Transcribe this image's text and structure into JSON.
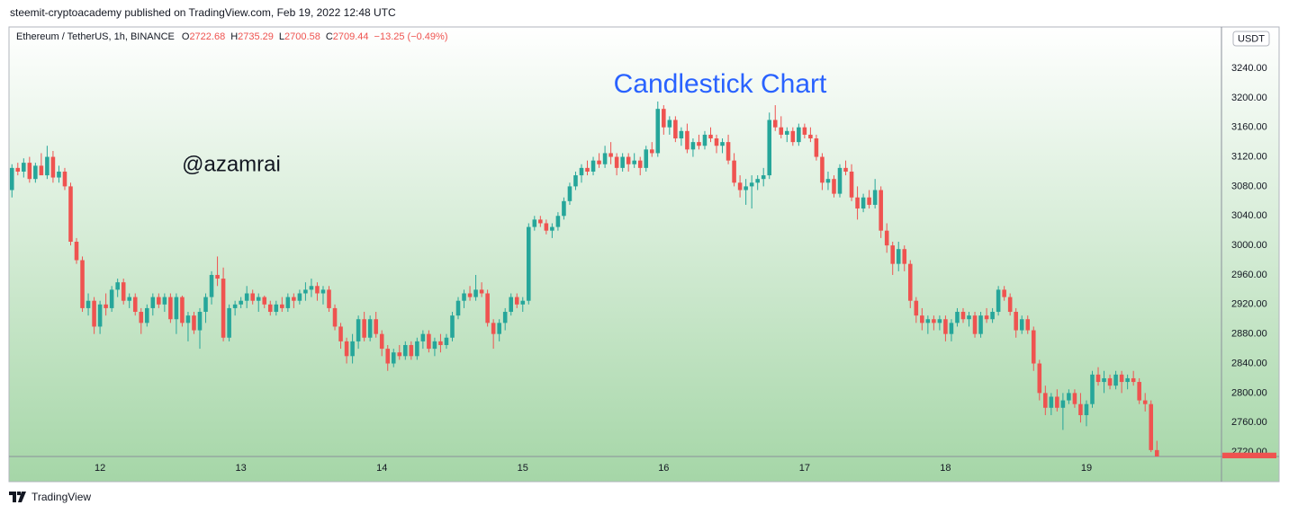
{
  "header": {
    "published": "steemit-cryptoacademy published on TradingView.com, Feb 19, 2022 12:48 UTC"
  },
  "footer": {
    "brand": "TradingView"
  },
  "chart_data": {
    "type": "candlestick",
    "symbol": "Ethereum / TetherUS, 1h, BINANCE",
    "ohlc_fields": [
      "O",
      "H",
      "L",
      "C"
    ],
    "change": "−13.25 (−0.49%)",
    "currency": "USDT",
    "title": "Candlestick Chart",
    "annotation": "@azamrai",
    "up_color": "#26a69a",
    "down_color": "#ef5350",
    "grid": false,
    "ylim": [
      2714,
      3296
    ],
    "yticks": [
      {
        "value": 2720,
        "label": "2720.00"
      },
      {
        "value": 2760,
        "label": "2760.00"
      },
      {
        "value": 2800,
        "label": "2800.00"
      },
      {
        "value": 2840,
        "label": "2840.00"
      },
      {
        "value": 2880,
        "label": "2880.00"
      },
      {
        "value": 2920,
        "label": "2920.00"
      },
      {
        "value": 2960,
        "label": "2960.00"
      },
      {
        "value": 3000,
        "label": "3000.00"
      },
      {
        "value": 3040,
        "label": "3040.00"
      },
      {
        "value": 3080,
        "label": "3080.00"
      },
      {
        "value": 3120,
        "label": "3120.00"
      },
      {
        "value": 3160,
        "label": "3160.00"
      },
      {
        "value": 3200,
        "label": "3200.00"
      },
      {
        "value": 3240,
        "label": "3240.00"
      }
    ],
    "xlim": [
      -0.5,
      206
    ],
    "xticks": [
      {
        "value": 15,
        "label": "12"
      },
      {
        "value": 39,
        "label": "13"
      },
      {
        "value": 63,
        "label": "14"
      },
      {
        "value": 87,
        "label": "15"
      },
      {
        "value": 111,
        "label": "16"
      },
      {
        "value": 135,
        "label": "17"
      },
      {
        "value": 159,
        "label": "18"
      },
      {
        "value": 183,
        "label": "19"
      }
    ],
    "ohlc": [
      [
        3075,
        3110,
        3065,
        3105
      ],
      [
        3105,
        3112,
        3095,
        3100
      ],
      [
        3100,
        3118,
        3092,
        3112
      ],
      [
        3112,
        3120,
        3085,
        3090
      ],
      [
        3090,
        3112,
        3085,
        3108
      ],
      [
        3108,
        3125,
        3100,
        3095
      ],
      [
        3095,
        3135,
        3090,
        3120
      ],
      [
        3120,
        3128,
        3085,
        3092
      ],
      [
        3092,
        3108,
        3085,
        3100
      ],
      [
        3100,
        3105,
        3075,
        3080
      ],
      [
        3080,
        3085,
        3000,
        3005
      ],
      [
        3005,
        3010,
        2975,
        2980
      ],
      [
        2980,
        2985,
        2910,
        2915
      ],
      [
        2915,
        2935,
        2905,
        2925
      ],
      [
        2925,
        2930,
        2880,
        2890
      ],
      [
        2890,
        2925,
        2880,
        2920
      ],
      [
        2920,
        2935,
        2905,
        2915
      ],
      [
        2915,
        2945,
        2910,
        2940
      ],
      [
        2940,
        2955,
        2930,
        2950
      ],
      [
        2950,
        2955,
        2920,
        2925
      ],
      [
        2925,
        2935,
        2915,
        2930
      ],
      [
        2930,
        2935,
        2905,
        2910
      ],
      [
        2910,
        2915,
        2880,
        2895
      ],
      [
        2895,
        2920,
        2890,
        2915
      ],
      [
        2915,
        2935,
        2905,
        2930
      ],
      [
        2930,
        2935,
        2915,
        2920
      ],
      [
        2920,
        2935,
        2910,
        2930
      ],
      [
        2930,
        2935,
        2895,
        2900
      ],
      [
        2900,
        2935,
        2880,
        2930
      ],
      [
        2930,
        2932,
        2890,
        2895
      ],
      [
        2895,
        2910,
        2870,
        2905
      ],
      [
        2905,
        2910,
        2880,
        2885
      ],
      [
        2885,
        2915,
        2860,
        2910
      ],
      [
        2910,
        2935,
        2895,
        2930
      ],
      [
        2930,
        2965,
        2920,
        2960
      ],
      [
        2960,
        2985,
        2945,
        2955
      ],
      [
        2955,
        2970,
        2870,
        2875
      ],
      [
        2875,
        2920,
        2870,
        2915
      ],
      [
        2915,
        2925,
        2905,
        2920
      ],
      [
        2920,
        2930,
        2915,
        2925
      ],
      [
        2925,
        2945,
        2915,
        2935
      ],
      [
        2935,
        2940,
        2920,
        2925
      ],
      [
        2925,
        2935,
        2910,
        2930
      ],
      [
        2930,
        2932,
        2915,
        2920
      ],
      [
        2920,
        2925,
        2905,
        2910
      ],
      [
        2910,
        2925,
        2905,
        2920
      ],
      [
        2920,
        2930,
        2910,
        2915
      ],
      [
        2915,
        2935,
        2910,
        2930
      ],
      [
        2930,
        2935,
        2915,
        2925
      ],
      [
        2925,
        2940,
        2920,
        2935
      ],
      [
        2935,
        2950,
        2925,
        2940
      ],
      [
        2940,
        2955,
        2930,
        2945
      ],
      [
        2945,
        2950,
        2925,
        2935
      ],
      [
        2935,
        2945,
        2920,
        2940
      ],
      [
        2940,
        2945,
        2910,
        2915
      ],
      [
        2915,
        2920,
        2885,
        2890
      ],
      [
        2890,
        2895,
        2860,
        2870
      ],
      [
        2870,
        2875,
        2840,
        2850
      ],
      [
        2850,
        2880,
        2840,
        2870
      ],
      [
        2870,
        2905,
        2860,
        2900
      ],
      [
        2900,
        2910,
        2870,
        2875
      ],
      [
        2875,
        2905,
        2870,
        2900
      ],
      [
        2900,
        2910,
        2875,
        2880
      ],
      [
        2880,
        2885,
        2850,
        2860
      ],
      [
        2860,
        2865,
        2830,
        2840
      ],
      [
        2840,
        2860,
        2835,
        2855
      ],
      [
        2855,
        2865,
        2845,
        2850
      ],
      [
        2850,
        2870,
        2845,
        2865
      ],
      [
        2865,
        2870,
        2845,
        2850
      ],
      [
        2850,
        2875,
        2845,
        2870
      ],
      [
        2870,
        2885,
        2860,
        2880
      ],
      [
        2880,
        2885,
        2855,
        2860
      ],
      [
        2860,
        2875,
        2850,
        2870
      ],
      [
        2870,
        2880,
        2855,
        2865
      ],
      [
        2865,
        2880,
        2860,
        2875
      ],
      [
        2875,
        2910,
        2870,
        2905
      ],
      [
        2905,
        2930,
        2900,
        2925
      ],
      [
        2925,
        2940,
        2915,
        2935
      ],
      [
        2935,
        2945,
        2925,
        2930
      ],
      [
        2930,
        2960,
        2925,
        2940
      ],
      [
        2940,
        2950,
        2930,
        2935
      ],
      [
        2935,
        2940,
        2890,
        2895
      ],
      [
        2895,
        2900,
        2860,
        2880
      ],
      [
        2880,
        2900,
        2870,
        2895
      ],
      [
        2895,
        2915,
        2885,
        2910
      ],
      [
        2910,
        2935,
        2905,
        2930
      ],
      [
        2930,
        2935,
        2915,
        2920
      ],
      [
        2920,
        2930,
        2910,
        2925
      ],
      [
        2925,
        3030,
        2920,
        3025
      ],
      [
        3025,
        3040,
        3020,
        3035
      ],
      [
        3035,
        3040,
        3025,
        3030
      ],
      [
        3030,
        3035,
        3015,
        3020
      ],
      [
        3020,
        3030,
        3010,
        3025
      ],
      [
        3025,
        3045,
        3020,
        3040
      ],
      [
        3040,
        3065,
        3035,
        3060
      ],
      [
        3060,
        3085,
        3055,
        3080
      ],
      [
        3080,
        3100,
        3075,
        3095
      ],
      [
        3095,
        3110,
        3085,
        3105
      ],
      [
        3105,
        3115,
        3095,
        3100
      ],
      [
        3100,
        3120,
        3095,
        3115
      ],
      [
        3115,
        3125,
        3105,
        3110
      ],
      [
        3110,
        3135,
        3105,
        3125
      ],
      [
        3125,
        3140,
        3110,
        3120
      ],
      [
        3120,
        3125,
        3095,
        3105
      ],
      [
        3105,
        3125,
        3100,
        3120
      ],
      [
        3120,
        3125,
        3100,
        3110
      ],
      [
        3110,
        3125,
        3105,
        3115
      ],
      [
        3115,
        3120,
        3095,
        3105
      ],
      [
        3105,
        3135,
        3100,
        3130
      ],
      [
        3130,
        3140,
        3120,
        3125
      ],
      [
        3125,
        3195,
        3120,
        3185
      ],
      [
        3185,
        3190,
        3150,
        3160
      ],
      [
        3160,
        3175,
        3150,
        3170
      ],
      [
        3170,
        3175,
        3140,
        3145
      ],
      [
        3145,
        3160,
        3135,
        3155
      ],
      [
        3155,
        3165,
        3125,
        3130
      ],
      [
        3130,
        3145,
        3120,
        3140
      ],
      [
        3140,
        3150,
        3130,
        3135
      ],
      [
        3135,
        3155,
        3130,
        3150
      ],
      [
        3150,
        3160,
        3140,
        3145
      ],
      [
        3145,
        3150,
        3125,
        3135
      ],
      [
        3135,
        3145,
        3125,
        3140
      ],
      [
        3140,
        3150,
        3110,
        3115
      ],
      [
        3115,
        3125,
        3080,
        3085
      ],
      [
        3085,
        3095,
        3065,
        3075
      ],
      [
        3075,
        3090,
        3055,
        3080
      ],
      [
        3080,
        3095,
        3050,
        3085
      ],
      [
        3085,
        3095,
        3075,
        3090
      ],
      [
        3090,
        3105,
        3080,
        3095
      ],
      [
        3095,
        3180,
        3090,
        3170
      ],
      [
        3170,
        3190,
        3155,
        3160
      ],
      [
        3160,
        3175,
        3145,
        3150
      ],
      [
        3150,
        3160,
        3140,
        3155
      ],
      [
        3155,
        3160,
        3135,
        3140
      ],
      [
        3140,
        3165,
        3135,
        3160
      ],
      [
        3160,
        3165,
        3145,
        3150
      ],
      [
        3150,
        3160,
        3140,
        3145
      ],
      [
        3145,
        3150,
        3115,
        3120
      ],
      [
        3120,
        3125,
        3075,
        3085
      ],
      [
        3085,
        3100,
        3075,
        3090
      ],
      [
        3090,
        3095,
        3065,
        3070
      ],
      [
        3070,
        3110,
        3065,
        3105
      ],
      [
        3105,
        3115,
        3095,
        3100
      ],
      [
        3100,
        3110,
        3060,
        3065
      ],
      [
        3065,
        3080,
        3035,
        3050
      ],
      [
        3050,
        3070,
        3045,
        3065
      ],
      [
        3065,
        3075,
        3050,
        3055
      ],
      [
        3055,
        3090,
        3050,
        3075
      ],
      [
        3075,
        3080,
        3010,
        3020
      ],
      [
        3020,
        3030,
        2990,
        3000
      ],
      [
        3000,
        3005,
        2960,
        2975
      ],
      [
        2975,
        3005,
        2965,
        2995
      ],
      [
        2995,
        3000,
        2965,
        2975
      ],
      [
        2975,
        2980,
        2915,
        2925
      ],
      [
        2925,
        2930,
        2895,
        2905
      ],
      [
        2905,
        2915,
        2885,
        2895
      ],
      [
        2895,
        2905,
        2880,
        2900
      ],
      [
        2900,
        2905,
        2885,
        2895
      ],
      [
        2895,
        2905,
        2885,
        2900
      ],
      [
        2900,
        2905,
        2870,
        2880
      ],
      [
        2880,
        2900,
        2870,
        2895
      ],
      [
        2895,
        2915,
        2890,
        2910
      ],
      [
        2910,
        2915,
        2895,
        2900
      ],
      [
        2900,
        2910,
        2890,
        2905
      ],
      [
        2905,
        2910,
        2875,
        2880
      ],
      [
        2880,
        2910,
        2875,
        2905
      ],
      [
        2905,
        2915,
        2895,
        2900
      ],
      [
        2900,
        2915,
        2895,
        2910
      ],
      [
        2910,
        2945,
        2905,
        2940
      ],
      [
        2940,
        2945,
        2925,
        2930
      ],
      [
        2930,
        2935,
        2905,
        2910
      ],
      [
        2910,
        2915,
        2875,
        2885
      ],
      [
        2885,
        2905,
        2880,
        2900
      ],
      [
        2900,
        2905,
        2880,
        2885
      ],
      [
        2885,
        2890,
        2830,
        2840
      ],
      [
        2840,
        2845,
        2790,
        2800
      ],
      [
        2800,
        2810,
        2770,
        2780
      ],
      [
        2780,
        2800,
        2770,
        2795
      ],
      [
        2795,
        2805,
        2775,
        2780
      ],
      [
        2780,
        2800,
        2750,
        2790
      ],
      [
        2790,
        2805,
        2785,
        2800
      ],
      [
        2800,
        2805,
        2780,
        2785
      ],
      [
        2785,
        2800,
        2760,
        2770
      ],
      [
        2770,
        2790,
        2755,
        2785
      ],
      [
        2785,
        2830,
        2780,
        2825
      ],
      [
        2825,
        2835,
        2810,
        2815
      ],
      [
        2815,
        2830,
        2800,
        2820
      ],
      [
        2820,
        2825,
        2805,
        2810
      ],
      [
        2810,
        2830,
        2805,
        2825
      ],
      [
        2825,
        2830,
        2800,
        2815
      ],
      [
        2815,
        2825,
        2805,
        2820
      ],
      [
        2820,
        2830,
        2810,
        2815
      ],
      [
        2815,
        2820,
        2785,
        2790
      ],
      [
        2790,
        2800,
        2775,
        2785
      ],
      [
        2785,
        2790,
        2720,
        2722.68
      ],
      [
        2722.68,
        2735.29,
        2700.58,
        2709.44
      ]
    ]
  }
}
